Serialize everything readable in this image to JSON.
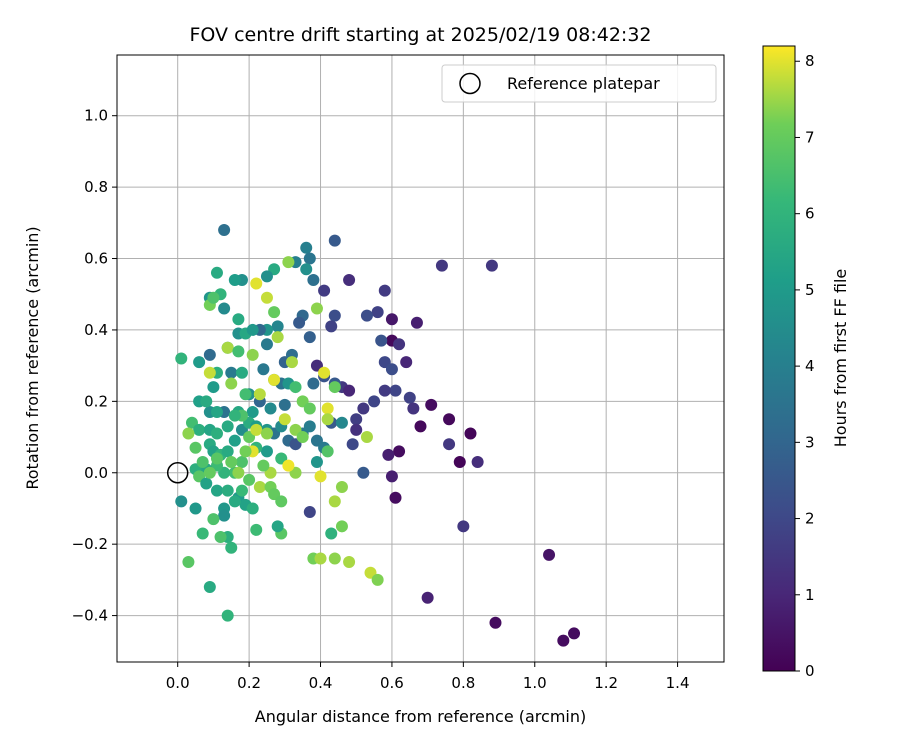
{
  "chart_data": {
    "type": "scatter",
    "title": "FOV centre drift starting at 2025/02/19 08:42:32",
    "xlabel": "Angular distance from reference (arcmin)",
    "ylabel": "Rotation from reference (arcmin)",
    "xlim": [
      -0.17,
      1.53
    ],
    "ylim": [
      -0.53,
      1.17
    ],
    "xticks": [
      0.0,
      0.2,
      0.4,
      0.6,
      0.8,
      1.0,
      1.2,
      1.4
    ],
    "xtick_labels": [
      "0.0",
      "0.2",
      "0.4",
      "0.6",
      "0.8",
      "1.0",
      "1.2",
      "1.4"
    ],
    "yticks": [
      -0.4,
      -0.2,
      0.0,
      0.2,
      0.4,
      0.6,
      0.8,
      1.0
    ],
    "ytick_labels": [
      "−0.4",
      "−0.2",
      "0.0",
      "0.2",
      "0.4",
      "0.6",
      "0.8",
      "1.0"
    ],
    "grid": true,
    "legend_position": "top-right",
    "reference": {
      "label": "Reference platepar",
      "x": 0.0,
      "y": 0.0
    },
    "colorbar": {
      "label": "Hours from first FF file",
      "range": [
        0,
        8.2
      ],
      "ticks": [
        0,
        1,
        2,
        3,
        4,
        5,
        6,
        7,
        8
      ],
      "tick_labels": [
        "0",
        "1",
        "2",
        "3",
        "4",
        "5",
        "6",
        "7",
        "8"
      ],
      "colormap": "viridis"
    },
    "points": [
      [
        0.88,
        0.58,
        1.5
      ],
      [
        0.74,
        0.58,
        1.5
      ],
      [
        0.71,
        0.19,
        0.3
      ],
      [
        0.68,
        0.13,
        0.2
      ],
      [
        0.76,
        0.15,
        0.2
      ],
      [
        0.82,
        0.11,
        0.1
      ],
      [
        0.79,
        0.03,
        0.1
      ],
      [
        0.84,
        0.03,
        1.2
      ],
      [
        0.76,
        0.08,
        1.5
      ],
      [
        0.8,
        -0.15,
        1.5
      ],
      [
        0.62,
        0.06,
        0.3
      ],
      [
        0.61,
        -0.07,
        0.3
      ],
      [
        0.6,
        -0.01,
        0.8
      ],
      [
        0.59,
        0.05,
        0.8
      ],
      [
        0.7,
        -0.35,
        0.9
      ],
      [
        0.89,
        -0.42,
        0.3
      ],
      [
        1.04,
        -0.23,
        0.5
      ],
      [
        1.08,
        -0.47,
        0.3
      ],
      [
        1.11,
        -0.45,
        0.3
      ],
      [
        0.67,
        0.42,
        0.8
      ],
      [
        0.6,
        0.43,
        0.6
      ],
      [
        0.6,
        0.37,
        0.2
      ],
      [
        0.62,
        0.36,
        1.4
      ],
      [
        0.64,
        0.31,
        1.0
      ],
      [
        0.58,
        0.51,
        1.6
      ],
      [
        0.56,
        0.45,
        1.8
      ],
      [
        0.53,
        0.44,
        2.2
      ],
      [
        0.48,
        0.54,
        1.2
      ],
      [
        0.44,
        0.65,
        2.6
      ],
      [
        0.41,
        0.51,
        1.6
      ],
      [
        0.44,
        0.44,
        2.2
      ],
      [
        0.43,
        0.41,
        1.8
      ],
      [
        0.57,
        0.37,
        2.4
      ],
      [
        0.58,
        0.31,
        2.0
      ],
      [
        0.6,
        0.29,
        2.2
      ],
      [
        0.61,
        0.23,
        1.9
      ],
      [
        0.65,
        0.21,
        1.8
      ],
      [
        0.66,
        0.18,
        1.4
      ],
      [
        0.58,
        0.23,
        1.6
      ],
      [
        0.55,
        0.2,
        1.9
      ],
      [
        0.52,
        0.18,
        1.5
      ],
      [
        0.5,
        0.15,
        1.7
      ],
      [
        0.5,
        0.12,
        1.3
      ],
      [
        0.49,
        0.08,
        2.0
      ],
      [
        0.52,
        0.0,
        2.6
      ],
      [
        0.46,
        0.24,
        1.5
      ],
      [
        0.48,
        0.23,
        1.0
      ],
      [
        0.44,
        0.25,
        2.6
      ],
      [
        0.41,
        0.27,
        2.4
      ],
      [
        0.39,
        0.3,
        1.2
      ],
      [
        0.38,
        0.25,
        3.2
      ],
      [
        0.35,
        0.44,
        3.1
      ],
      [
        0.37,
        0.38,
        2.8
      ],
      [
        0.34,
        0.42,
        2.6
      ],
      [
        0.3,
        0.31,
        2.9
      ],
      [
        0.32,
        0.33,
        3.3
      ],
      [
        0.28,
        0.41,
        4.2
      ],
      [
        0.25,
        0.4,
        4.8
      ],
      [
        0.25,
        0.36,
        3.8
      ],
      [
        0.23,
        0.4,
        3.1
      ],
      [
        0.36,
        0.63,
        4.0
      ],
      [
        0.37,
        0.6,
        3.6
      ],
      [
        0.33,
        0.59,
        4.0
      ],
      [
        0.38,
        0.54,
        3.4
      ],
      [
        0.36,
        0.57,
        4.6
      ],
      [
        0.27,
        0.57,
        5.6
      ],
      [
        0.25,
        0.55,
        4.6
      ],
      [
        0.13,
        0.68,
        3.4
      ],
      [
        0.18,
        0.54,
        4.6
      ],
      [
        0.16,
        0.54,
        5.1
      ],
      [
        0.09,
        0.49,
        4.8
      ],
      [
        0.13,
        0.46,
        4.4
      ],
      [
        0.12,
        0.5,
        6.0
      ],
      [
        0.11,
        0.56,
        5.6
      ],
      [
        0.17,
        0.43,
        5.6
      ],
      [
        0.17,
        0.39,
        4.6
      ],
      [
        0.19,
        0.39,
        5.5
      ],
      [
        0.21,
        0.4,
        4.9
      ],
      [
        0.14,
        0.35,
        5.2
      ],
      [
        0.09,
        0.33,
        3.2
      ],
      [
        0.06,
        0.31,
        5.0
      ],
      [
        0.11,
        0.28,
        5.8
      ],
      [
        0.15,
        0.28,
        3.8
      ],
      [
        0.18,
        0.28,
        5.6
      ],
      [
        0.24,
        0.29,
        3.7
      ],
      [
        0.27,
        0.26,
        4.4
      ],
      [
        0.29,
        0.25,
        3.5
      ],
      [
        0.31,
        0.25,
        4.8
      ],
      [
        0.33,
        0.24,
        6.4
      ],
      [
        0.3,
        0.19,
        3.4
      ],
      [
        0.26,
        0.18,
        4.4
      ],
      [
        0.23,
        0.2,
        3.0
      ],
      [
        0.2,
        0.22,
        4.7
      ],
      [
        0.21,
        0.17,
        5.0
      ],
      [
        0.17,
        0.17,
        5.5
      ],
      [
        0.13,
        0.17,
        3.5
      ],
      [
        0.09,
        0.17,
        4.6
      ],
      [
        0.06,
        0.2,
        5.2
      ],
      [
        0.04,
        0.14,
        6.4
      ],
      [
        0.06,
        0.12,
        5.8
      ],
      [
        0.09,
        0.12,
        5.4
      ],
      [
        0.11,
        0.11,
        5.8
      ],
      [
        0.09,
        0.08,
        5.6
      ],
      [
        0.1,
        0.06,
        5.3
      ],
      [
        0.12,
        0.05,
        6.0
      ],
      [
        0.14,
        0.06,
        5.6
      ],
      [
        0.16,
        0.09,
        5.2
      ],
      [
        0.18,
        0.12,
        4.5
      ],
      [
        0.2,
        0.14,
        5.7
      ],
      [
        0.22,
        0.13,
        5.1
      ],
      [
        0.25,
        0.12,
        4.8
      ],
      [
        0.27,
        0.11,
        3.5
      ],
      [
        0.29,
        0.13,
        4.4
      ],
      [
        0.31,
        0.09,
        3.2
      ],
      [
        0.33,
        0.08,
        2.4
      ],
      [
        0.35,
        0.11,
        3.8
      ],
      [
        0.37,
        0.13,
        3.9
      ],
      [
        0.39,
        0.09,
        3.6
      ],
      [
        0.41,
        0.07,
        3.8
      ],
      [
        0.43,
        0.14,
        2.6
      ],
      [
        0.46,
        0.14,
        4.3
      ],
      [
        0.39,
        0.03,
        4.8
      ],
      [
        0.37,
        -0.11,
        1.9
      ],
      [
        0.42,
        0.06,
        6.7
      ],
      [
        0.29,
        0.04,
        6.2
      ],
      [
        0.25,
        0.06,
        5.0
      ],
      [
        0.22,
        0.07,
        6.0
      ],
      [
        0.18,
        0.03,
        6.6
      ],
      [
        0.16,
        0.0,
        6.4
      ],
      [
        0.13,
        0.0,
        6.0
      ],
      [
        0.11,
        0.02,
        6.3
      ],
      [
        0.08,
        0.01,
        5.5
      ],
      [
        0.05,
        0.01,
        5.8
      ],
      [
        0.06,
        -0.01,
        6.8
      ],
      [
        0.08,
        -0.03,
        5.3
      ],
      [
        0.11,
        -0.05,
        5.4
      ],
      [
        0.14,
        -0.05,
        5.7
      ],
      [
        0.17,
        -0.07,
        5.0
      ],
      [
        0.19,
        -0.09,
        5.3
      ],
      [
        0.21,
        -0.1,
        5.8
      ],
      [
        0.13,
        -0.1,
        4.9
      ],
      [
        0.13,
        -0.12,
        4.6
      ],
      [
        0.16,
        -0.08,
        5.6
      ],
      [
        0.18,
        -0.05,
        6.2
      ],
      [
        0.2,
        -0.02,
        6.8
      ],
      [
        0.23,
        -0.04,
        7.6
      ],
      [
        0.26,
        -0.04,
        7.2
      ],
      [
        0.27,
        -0.06,
        7.0
      ],
      [
        0.29,
        -0.08,
        6.9
      ],
      [
        0.29,
        -0.17,
        6.8
      ],
      [
        0.28,
        -0.15,
        5.4
      ],
      [
        0.22,
        -0.16,
        6.3
      ],
      [
        0.14,
        -0.18,
        5.8
      ],
      [
        0.15,
        -0.21,
        6.0
      ],
      [
        0.12,
        -0.18,
        6.6
      ],
      [
        0.1,
        -0.13,
        6.6
      ],
      [
        0.07,
        -0.17,
        6.2
      ],
      [
        0.05,
        -0.1,
        4.9
      ],
      [
        0.01,
        -0.08,
        4.6
      ],
      [
        0.03,
        -0.25,
        6.8
      ],
      [
        0.09,
        -0.32,
        5.6
      ],
      [
        0.14,
        -0.4,
        6.0
      ],
      [
        0.38,
        -0.24,
        7.2
      ],
      [
        0.4,
        -0.24,
        7.6
      ],
      [
        0.44,
        -0.24,
        7.4
      ],
      [
        0.48,
        -0.25,
        7.6
      ],
      [
        0.54,
        -0.28,
        7.8
      ],
      [
        0.56,
        -0.3,
        7.3
      ],
      [
        0.43,
        -0.17,
        5.9
      ],
      [
        0.46,
        -0.15,
        7.2
      ],
      [
        0.44,
        -0.08,
        7.6
      ],
      [
        0.46,
        -0.04,
        7.4
      ],
      [
        0.4,
        -0.01,
        8.0
      ],
      [
        0.33,
        0.0,
        7.4
      ],
      [
        0.31,
        0.02,
        8.1
      ],
      [
        0.26,
        0.0,
        7.6
      ],
      [
        0.24,
        0.02,
        7.0
      ],
      [
        0.21,
        0.06,
        8.0
      ],
      [
        0.19,
        0.06,
        7.2
      ],
      [
        0.17,
        0.0,
        7.4
      ],
      [
        0.15,
        0.03,
        7.0
      ],
      [
        0.11,
        0.04,
        6.8
      ],
      [
        0.09,
        0.0,
        7.0
      ],
      [
        0.07,
        0.03,
        6.6
      ],
      [
        0.05,
        0.07,
        6.8
      ],
      [
        0.03,
        0.11,
        7.4
      ],
      [
        0.01,
        0.32,
        6.0
      ],
      [
        0.09,
        0.28,
        7.8
      ],
      [
        0.09,
        0.47,
        7.2
      ],
      [
        0.1,
        0.49,
        6.6
      ],
      [
        0.14,
        0.35,
        7.6
      ],
      [
        0.15,
        0.25,
        7.4
      ],
      [
        0.18,
        0.16,
        6.6
      ],
      [
        0.2,
        0.1,
        7.0
      ],
      [
        0.22,
        0.12,
        7.8
      ],
      [
        0.23,
        0.22,
        7.7
      ],
      [
        0.25,
        0.11,
        7.4
      ],
      [
        0.27,
        0.26,
        8.0
      ],
      [
        0.28,
        0.38,
        7.6
      ],
      [
        0.3,
        0.15,
        7.8
      ],
      [
        0.31,
        0.59,
        7.4
      ],
      [
        0.32,
        0.31,
        7.6
      ],
      [
        0.33,
        0.12,
        7.4
      ],
      [
        0.35,
        0.1,
        7.2
      ],
      [
        0.35,
        0.2,
        7.2
      ],
      [
        0.37,
        0.18,
        7.0
      ],
      [
        0.39,
        0.46,
        7.4
      ],
      [
        0.41,
        0.28,
        8.0
      ],
      [
        0.42,
        0.18,
        8.0
      ],
      [
        0.42,
        0.15,
        7.6
      ],
      [
        0.44,
        0.24,
        7.0
      ],
      [
        0.53,
        0.1,
        7.6
      ],
      [
        0.22,
        0.53,
        8.0
      ],
      [
        0.25,
        0.49,
        7.8
      ],
      [
        0.27,
        0.45,
        7.0
      ],
      [
        0.21,
        0.33,
        7.4
      ],
      [
        0.17,
        0.34,
        6.4
      ],
      [
        0.19,
        0.22,
        6.4
      ],
      [
        0.16,
        0.16,
        6.0
      ],
      [
        0.14,
        0.13,
        5.6
      ],
      [
        0.11,
        0.17,
        5.4
      ],
      [
        0.08,
        0.2,
        5.6
      ],
      [
        0.1,
        0.24,
        5.0
      ]
    ]
  }
}
